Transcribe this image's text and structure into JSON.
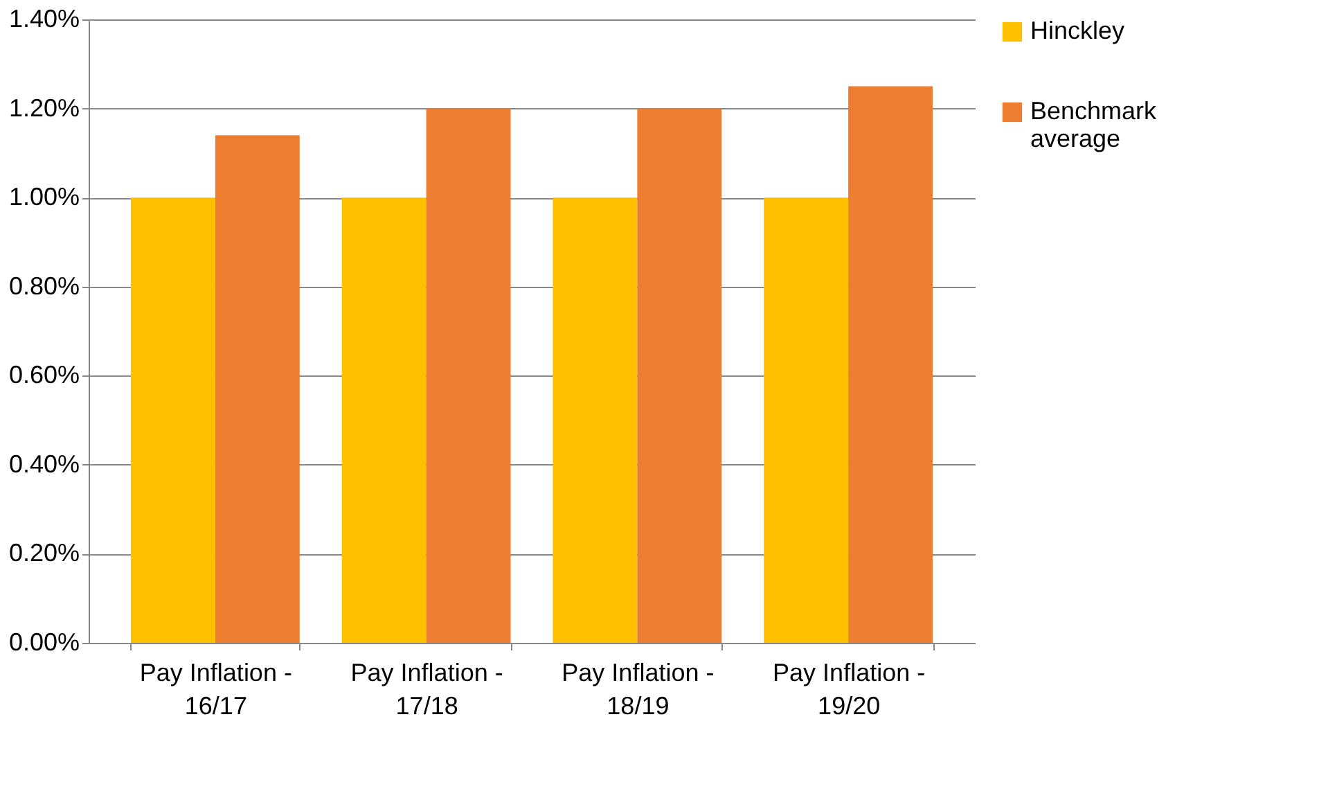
{
  "chart_data": {
    "type": "bar",
    "categories": [
      "Pay Inflation - 16/17",
      "Pay Inflation - 17/18",
      "Pay Inflation - 18/19",
      "Pay Inflation - 19/20"
    ],
    "series": [
      {
        "name": "Hinckley",
        "color": "#ffc000",
        "values": [
          1.0,
          1.0,
          1.0,
          1.0
        ]
      },
      {
        "name": "Benchmark average",
        "color": "#ed7d31",
        "values": [
          1.14,
          1.2,
          1.2,
          1.25
        ]
      }
    ],
    "ylim": [
      0,
      1.4
    ],
    "yticks": [
      {
        "value": 0,
        "label": "0.00%"
      },
      {
        "value": 0.2,
        "label": "0.20%"
      },
      {
        "value": 0.4,
        "label": "0.40%"
      },
      {
        "value": 0.6,
        "label": "0.60%"
      },
      {
        "value": 0.8,
        "label": "0.80%"
      },
      {
        "value": 1.0,
        "label": "1.00%"
      },
      {
        "value": 1.2,
        "label": "1.20%"
      },
      {
        "value": 1.4,
        "label": "1.40%"
      }
    ],
    "grid": "y",
    "legend": "right"
  }
}
